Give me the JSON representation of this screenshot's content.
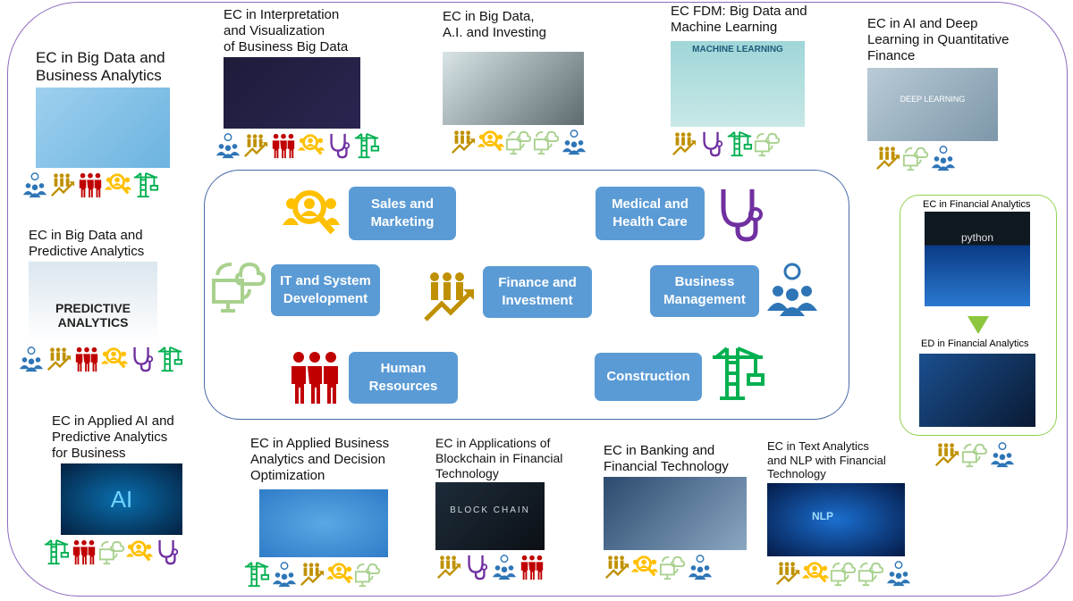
{
  "sectors": [
    {
      "key": "sm",
      "label": "Sales and\nMarketing"
    },
    {
      "key": "med",
      "label": "Medical and\nHealth Care"
    },
    {
      "key": "it",
      "label": "IT and System\nDevelopment"
    },
    {
      "key": "fi",
      "label": "Finance and\nInvestment"
    },
    {
      "key": "bm",
      "label": "Business\nManagement"
    },
    {
      "key": "hr",
      "label": "Human\nResources"
    },
    {
      "key": "con",
      "label": "Construction"
    }
  ],
  "icon_colors": {
    "bm": "#2e75b6",
    "fi": "#bf9000",
    "hr": "#c00000",
    "sm": "#ffc000",
    "med": "#7030a0",
    "con": "#00b050",
    "it": "#a9d18e"
  },
  "icon_names": {
    "bm": "business-management-icon",
    "fi": "finance-investment-icon",
    "hr": "human-resources-icon",
    "sm": "sales-marketing-icon",
    "med": "stethoscope-icon",
    "con": "construction-crane-icon",
    "it": "computer-cloud-icon"
  },
  "courses": [
    {
      "title": "EC in Big Data and\nBusiness Analytics",
      "icons": [
        "bm",
        "fi",
        "hr",
        "sm",
        "con"
      ]
    },
    {
      "title": "EC in Interpretation\nand Visualization\nof Business Big Data",
      "icons": [
        "bm",
        "fi",
        "hr",
        "sm",
        "med",
        "con"
      ]
    },
    {
      "title": "EC in Big Data,\nA.I. and Investing",
      "icons": [
        "fi",
        "sm",
        "it",
        "it",
        "bm"
      ]
    },
    {
      "title": "EC FDM: Big Data and\nMachine Learning",
      "icons": [
        "fi",
        "med",
        "con",
        "it"
      ],
      "image_text": "MACHINE LEARNING"
    },
    {
      "title": "EC in AI and Deep\nLearning in Quantitative\nFinance",
      "icons": [
        "fi",
        "it",
        "bm"
      ],
      "image_text": "DEEP LEARNING"
    },
    {
      "title": "EC in Big Data and\nPredictive Analytics",
      "icons": [
        "bm",
        "fi",
        "hr",
        "sm",
        "med",
        "con"
      ],
      "image_text": "PREDICTIVE ANALYTICS"
    },
    {
      "title": "EC in Applied AI and\nPredictive Analytics\nfor Business",
      "icons": [
        "con",
        "hr",
        "it",
        "sm",
        "med"
      ],
      "image_text": "AI"
    },
    {
      "title": "EC in Applied Business\nAnalytics and Decision\nOptimization",
      "icons": [
        "con",
        "bm",
        "fi",
        "sm",
        "it"
      ]
    },
    {
      "title": "EC in Applications of\nBlockchain in Financial\nTechnology",
      "icons": [
        "fi",
        "med",
        "bm",
        "hr"
      ],
      "image_text": "BLOCK CHAIN"
    },
    {
      "title": "EC in Banking and\nFinancial Technology",
      "icons": [
        "fi",
        "sm",
        "it",
        "bm"
      ]
    },
    {
      "title": "EC in Text Analytics\nand NLP with Financial\nTechnology",
      "icons": [
        "fi",
        "sm",
        "it",
        "it",
        "bm"
      ],
      "image_text": "NLP"
    }
  ],
  "financial_analytics": {
    "ec_title": "EC in Financial Analytics",
    "image_text": "python",
    "ed_title": "ED in Financial Analytics",
    "icons": [
      "fi",
      "it",
      "bm"
    ]
  }
}
